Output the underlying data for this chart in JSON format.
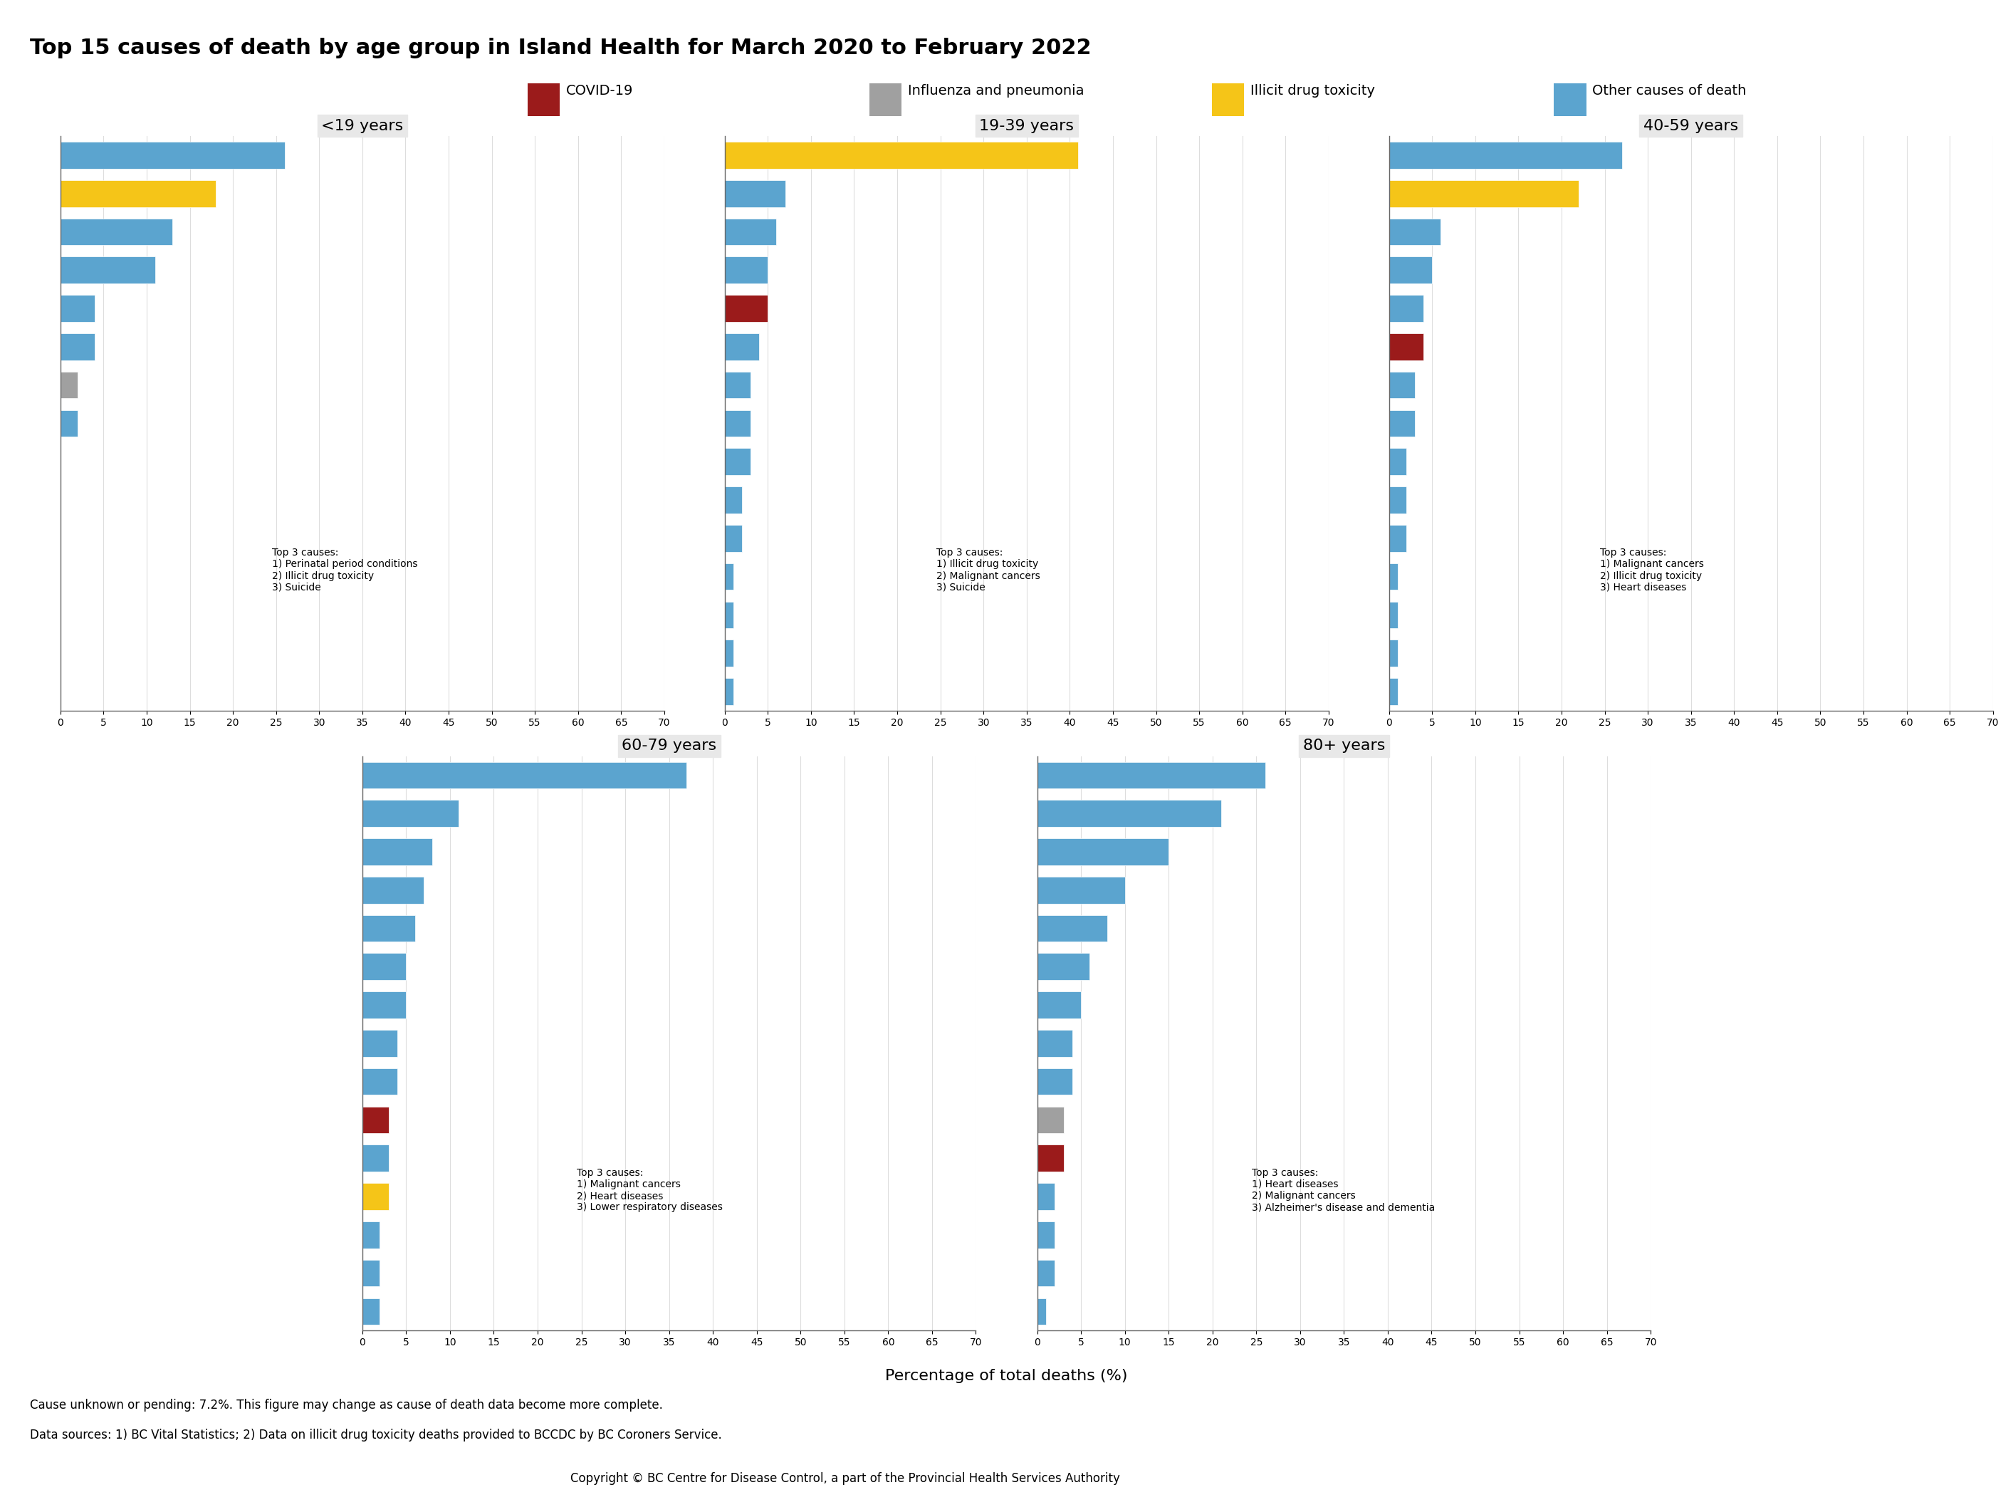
{
  "title": "Top 15 causes of death by age group in Island Health for March 2020 to February 2022",
  "xlabel": "Percentage of total deaths (%)",
  "footer_line1": "Cause unknown or pending: 7.2%. This figure may change as cause of death data become more complete.",
  "footer_line2": "Data sources: 1) BC Vital Statistics; 2) Data on illicit drug toxicity deaths provided to BCCDC by BC Coroners Service.",
  "copyright": "Copyright © BC Centre for Disease Control, a part of the Provincial Health Services Authority",
  "colors": {
    "covid": "#9B1B1B",
    "influenza": "#A0A0A0",
    "illicit": "#F5C518",
    "other": "#5BA4CF",
    "panel_bg": "#E8E8E8",
    "plot_bg": "#FFFFFF",
    "grid": "#DDDDDD"
  },
  "legend_labels": [
    "COVID-19",
    "Influenza and pneumonia",
    "Illicit drug toxicity",
    "Other causes of death"
  ],
  "xlim": [
    0,
    70
  ],
  "xticks": [
    0,
    5,
    10,
    15,
    20,
    25,
    30,
    35,
    40,
    45,
    50,
    55,
    60,
    65,
    70
  ],
  "panels": [
    {
      "title": "<19 years",
      "top3_text": "Top 3 causes:\n1) Perinatal period conditions\n2) Illicit drug toxicity\n3) Suicide",
      "bars": [
        {
          "value": 26,
          "color": "other"
        },
        {
          "value": 18,
          "color": "illicit"
        },
        {
          "value": 13,
          "color": "other"
        },
        {
          "value": 11,
          "color": "other"
        },
        {
          "value": 4,
          "color": "other"
        },
        {
          "value": 4,
          "color": "other"
        },
        {
          "value": 2,
          "color": "influenza"
        },
        {
          "value": 2,
          "color": "other"
        },
        {
          "value": 0,
          "color": "other"
        },
        {
          "value": 0,
          "color": "other"
        },
        {
          "value": 0,
          "color": "other"
        },
        {
          "value": 0,
          "color": "other"
        },
        {
          "value": 0,
          "color": "other"
        },
        {
          "value": 0,
          "color": "other"
        },
        {
          "value": 0,
          "color": "other"
        }
      ]
    },
    {
      "title": "19-39 years",
      "top3_text": "Top 3 causes:\n1) Illicit drug toxicity\n2) Malignant cancers\n3) Suicide",
      "bars": [
        {
          "value": 41,
          "color": "illicit"
        },
        {
          "value": 7,
          "color": "other"
        },
        {
          "value": 6,
          "color": "other"
        },
        {
          "value": 5,
          "color": "other"
        },
        {
          "value": 5,
          "color": "covid"
        },
        {
          "value": 4,
          "color": "other"
        },
        {
          "value": 3,
          "color": "other"
        },
        {
          "value": 3,
          "color": "other"
        },
        {
          "value": 3,
          "color": "other"
        },
        {
          "value": 2,
          "color": "other"
        },
        {
          "value": 2,
          "color": "other"
        },
        {
          "value": 1,
          "color": "other"
        },
        {
          "value": 1,
          "color": "other"
        },
        {
          "value": 1,
          "color": "other"
        },
        {
          "value": 1,
          "color": "other"
        }
      ]
    },
    {
      "title": "40-59 years",
      "top3_text": "Top 3 causes:\n1) Malignant cancers\n2) Illicit drug toxicity\n3) Heart diseases",
      "bars": [
        {
          "value": 27,
          "color": "other"
        },
        {
          "value": 22,
          "color": "illicit"
        },
        {
          "value": 6,
          "color": "other"
        },
        {
          "value": 5,
          "color": "other"
        },
        {
          "value": 4,
          "color": "other"
        },
        {
          "value": 4,
          "color": "covid"
        },
        {
          "value": 3,
          "color": "other"
        },
        {
          "value": 3,
          "color": "other"
        },
        {
          "value": 2,
          "color": "other"
        },
        {
          "value": 2,
          "color": "other"
        },
        {
          "value": 2,
          "color": "other"
        },
        {
          "value": 1,
          "color": "other"
        },
        {
          "value": 1,
          "color": "other"
        },
        {
          "value": 1,
          "color": "other"
        },
        {
          "value": 1,
          "color": "other"
        }
      ]
    },
    {
      "title": "60-79 years",
      "top3_text": "Top 3 causes:\n1) Malignant cancers\n2) Heart diseases\n3) Lower respiratory diseases",
      "bars": [
        {
          "value": 37,
          "color": "other"
        },
        {
          "value": 11,
          "color": "other"
        },
        {
          "value": 8,
          "color": "other"
        },
        {
          "value": 7,
          "color": "other"
        },
        {
          "value": 6,
          "color": "other"
        },
        {
          "value": 5,
          "color": "other"
        },
        {
          "value": 5,
          "color": "other"
        },
        {
          "value": 4,
          "color": "other"
        },
        {
          "value": 4,
          "color": "other"
        },
        {
          "value": 3,
          "color": "covid"
        },
        {
          "value": 3,
          "color": "other"
        },
        {
          "value": 3,
          "color": "illicit"
        },
        {
          "value": 2,
          "color": "other"
        },
        {
          "value": 2,
          "color": "other"
        },
        {
          "value": 2,
          "color": "other"
        }
      ]
    },
    {
      "title": "80+ years",
      "top3_text": "Top 3 causes:\n1) Heart diseases\n2) Malignant cancers\n3) Alzheimer's disease and dementia",
      "bars": [
        {
          "value": 26,
          "color": "other"
        },
        {
          "value": 21,
          "color": "other"
        },
        {
          "value": 15,
          "color": "other"
        },
        {
          "value": 10,
          "color": "other"
        },
        {
          "value": 8,
          "color": "other"
        },
        {
          "value": 6,
          "color": "other"
        },
        {
          "value": 5,
          "color": "other"
        },
        {
          "value": 4,
          "color": "other"
        },
        {
          "value": 4,
          "color": "other"
        },
        {
          "value": 3,
          "color": "influenza"
        },
        {
          "value": 3,
          "color": "covid"
        },
        {
          "value": 2,
          "color": "other"
        },
        {
          "value": 2,
          "color": "other"
        },
        {
          "value": 2,
          "color": "other"
        },
        {
          "value": 1,
          "color": "other"
        }
      ]
    }
  ]
}
